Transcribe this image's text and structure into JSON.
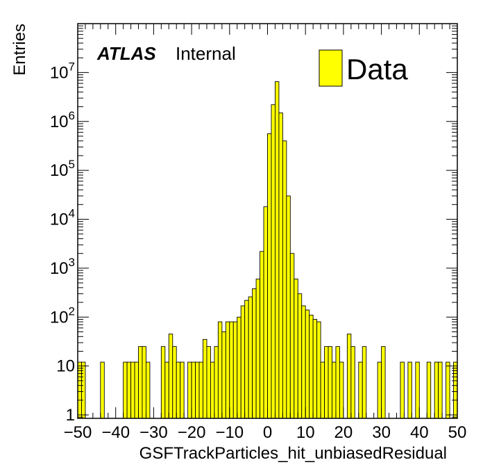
{
  "chart_data": {
    "type": "bar",
    "histogram": true,
    "xlabel": "GSFTrackParticles_hit_unbiasedResidual",
    "ylabel": "Entries",
    "xlim": [
      -50,
      50
    ],
    "ylim": [
      0.85,
      100000000
    ],
    "yscale": "log",
    "bin_width": 1,
    "x_ticks": [
      -50,
      -40,
      -30,
      -20,
      -10,
      0,
      10,
      20,
      30,
      40,
      50
    ],
    "x_tick_labels": [
      "−50",
      "−40",
      "−30",
      "−20",
      "−10",
      "0",
      "10",
      "20",
      "30",
      "40",
      "50"
    ],
    "y_ticks": [
      {
        "value": 1,
        "base": "1",
        "exp": ""
      },
      {
        "value": 10,
        "base": "10",
        "exp": ""
      },
      {
        "value": 100,
        "base": "10",
        "exp": "2"
      },
      {
        "value": 1000,
        "base": "10",
        "exp": "3"
      },
      {
        "value": 10000,
        "base": "10",
        "exp": "4"
      },
      {
        "value": 100000,
        "base": "10",
        "exp": "5"
      },
      {
        "value": 1000000,
        "base": "10",
        "exp": "6"
      },
      {
        "value": 10000000,
        "base": "10",
        "exp": "7"
      }
    ],
    "series": [
      {
        "name": "Data",
        "fill": "#ffff00",
        "stroke": "#000000",
        "bin_low_edges": [
          -50,
          -49,
          -48,
          -47,
          -46,
          -45,
          -44,
          -43,
          -42,
          -41,
          -40,
          -39,
          -38,
          -37,
          -36,
          -35,
          -34,
          -33,
          -32,
          -31,
          -30,
          -29,
          -28,
          -27,
          -26,
          -25,
          -24,
          -23,
          -22,
          -21,
          -20,
          -19,
          -18,
          -17,
          -16,
          -15,
          -14,
          -13,
          -12,
          -11,
          -10,
          -9,
          -8,
          -7,
          -6,
          -5,
          -4,
          -3,
          -2,
          -1,
          0,
          1,
          2,
          3,
          4,
          5,
          6,
          7,
          8,
          9,
          10,
          11,
          12,
          13,
          14,
          15,
          16,
          17,
          18,
          19,
          20,
          21,
          22,
          23,
          24,
          25,
          26,
          27,
          28,
          29,
          30,
          31,
          32,
          33,
          34,
          35,
          36,
          37,
          38,
          39,
          40,
          41,
          42,
          43,
          44,
          45,
          46,
          47,
          48,
          49
        ],
        "values": [
          12,
          12,
          0,
          0,
          0,
          0,
          12,
          0,
          0,
          0,
          0,
          0,
          12,
          12,
          12,
          12,
          25,
          25,
          12,
          0,
          0,
          0,
          25,
          12,
          45,
          25,
          12,
          12,
          0,
          12,
          12,
          12,
          12,
          35,
          25,
          12,
          25,
          80,
          50,
          80,
          80,
          80,
          100,
          170,
          220,
          260,
          380,
          600,
          2200,
          18000,
          560000,
          2200000,
          6500000,
          1500000,
          400000,
          30000,
          2000,
          600,
          300,
          170,
          140,
          110,
          90,
          80,
          12,
          25,
          25,
          12,
          25,
          12,
          0,
          45,
          25,
          0,
          12,
          25,
          0,
          0,
          0,
          12,
          25,
          0,
          0,
          0,
          0,
          12,
          0,
          12,
          0,
          12,
          0,
          0,
          12,
          0,
          12,
          12,
          0,
          12,
          0,
          12
        ],
        "style": "filled histogram"
      }
    ],
    "legend": {
      "entries": [
        "Data"
      ],
      "position": "top-right"
    },
    "annotations": [
      {
        "bold_italic": "ATLAS",
        "text": "Internal",
        "position": "top-left"
      }
    ]
  }
}
